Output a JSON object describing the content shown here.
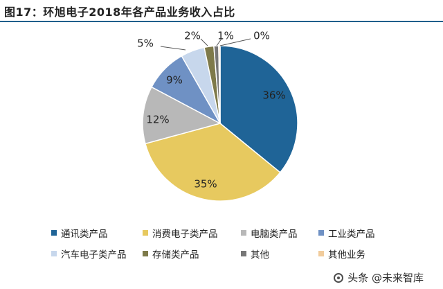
{
  "figure": {
    "title": "图17：环旭电子2018年各产品业务收入占比"
  },
  "chart_data": {
    "type": "pie",
    "title": "环旭电子2018年各产品业务收入占比",
    "slices": [
      {
        "label": "通讯类产品",
        "value": 36,
        "display": "36%",
        "color": "#1f6497"
      },
      {
        "label": "消费电子类产品",
        "value": 35,
        "display": "35%",
        "color": "#e7c95f"
      },
      {
        "label": "电脑类产品",
        "value": 12,
        "display": "12%",
        "color": "#b8b8b8"
      },
      {
        "label": "工业类产品",
        "value": 9,
        "display": "9%",
        "color": "#6f91c4"
      },
      {
        "label": "汽车电子类产品",
        "value": 5,
        "display": "5%",
        "color": "#c7d7ec"
      },
      {
        "label": "存储类产品",
        "value": 2,
        "display": "2%",
        "color": "#7e7a4a"
      },
      {
        "label": "其他",
        "value": 1,
        "display": "1%",
        "color": "#777777"
      },
      {
        "label": "其他业务",
        "value": 0.3,
        "display": "0%",
        "color": "#f1cc9c"
      }
    ],
    "legend_position": "bottom"
  },
  "watermark": {
    "text": "头条 @未来智库"
  }
}
